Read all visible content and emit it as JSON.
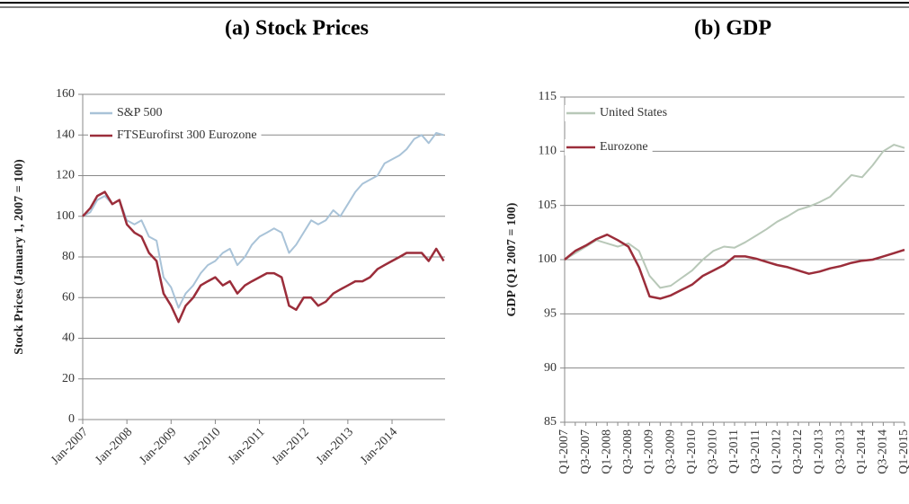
{
  "chart_data": [
    {
      "type": "line",
      "title": "(a) Stock Prices",
      "ylabel": "Stock Prices (January 1, 2007 = 100)",
      "x": [
        2007,
        2007.17,
        2007.33,
        2007.5,
        2007.67,
        2007.83,
        2008,
        2008.17,
        2008.33,
        2008.5,
        2008.67,
        2008.83,
        2009,
        2009.17,
        2009.33,
        2009.5,
        2009.67,
        2009.83,
        2010,
        2010.17,
        2010.33,
        2010.5,
        2010.67,
        2010.83,
        2011,
        2011.17,
        2011.33,
        2011.5,
        2011.67,
        2011.83,
        2012,
        2012.17,
        2012.33,
        2012.5,
        2012.67,
        2012.83,
        2013,
        2013.17,
        2013.33,
        2013.5,
        2013.67,
        2013.83,
        2014,
        2014.17,
        2014.33,
        2014.5,
        2014.67,
        2014.83,
        2015,
        2015.17
      ],
      "series": [
        {
          "name": "S&P 500",
          "color": "#a9c3d8",
          "values": [
            100,
            102,
            108,
            110,
            106,
            108,
            98,
            96,
            98,
            90,
            88,
            70,
            65,
            55,
            62,
            66,
            72,
            76,
            78,
            82,
            84,
            76,
            80,
            86,
            90,
            92,
            94,
            92,
            82,
            86,
            92,
            98,
            96,
            98,
            103,
            100,
            106,
            112,
            116,
            118,
            120,
            126,
            128,
            130,
            133,
            138,
            140,
            136,
            141,
            140
          ]
        },
        {
          "name": "FTSEurofirst 300 Eurozone",
          "color": "#9b2d3a",
          "values": [
            100,
            104,
            110,
            112,
            106,
            108,
            96,
            92,
            90,
            82,
            78,
            62,
            56,
            48,
            56,
            60,
            66,
            68,
            70,
            66,
            68,
            62,
            66,
            68,
            70,
            72,
            72,
            70,
            56,
            54,
            60,
            60,
            56,
            58,
            62,
            64,
            66,
            68,
            68,
            70,
            74,
            76,
            78,
            80,
            82,
            82,
            82,
            78,
            84,
            78
          ]
        }
      ],
      "xlim": [
        2007,
        2015.2
      ],
      "xticks": [
        {
          "value": 2007,
          "label": "Jan-2007"
        },
        {
          "value": 2008,
          "label": "Jan-2008"
        },
        {
          "value": 2009,
          "label": "Jan-2009"
        },
        {
          "value": 2010,
          "label": "Jan-2010"
        },
        {
          "value": 2011,
          "label": "Jan-2011"
        },
        {
          "value": 2012,
          "label": "Jan-2012"
        },
        {
          "value": 2013,
          "label": "Jan-2013"
        },
        {
          "value": 2014,
          "label": "Jan-2014"
        }
      ],
      "ylim": [
        0,
        160
      ],
      "yticks": [
        0,
        20,
        40,
        60,
        80,
        100,
        120,
        140,
        160
      ],
      "grid": true,
      "legend": "upper left"
    },
    {
      "type": "line",
      "title": "(b) GDP",
      "ylabel": "GDP (Q1 2007 = 100)",
      "categories": [
        "Q1-2007",
        null,
        "Q3-2007",
        null,
        "Q1-2008",
        null,
        "Q3-2008",
        null,
        "Q1-2009",
        null,
        "Q3-2009",
        null,
        "Q1-2010",
        null,
        "Q3-2010",
        null,
        "Q1-2011",
        null,
        "Q3-2011",
        null,
        "Q1-2012",
        null,
        "Q3-2012",
        null,
        "Q1-2013",
        null,
        "Q3-2013",
        null,
        "Q1-2014",
        null,
        "Q3-2014",
        null,
        "Q1-2015"
      ],
      "series": [
        {
          "name": "United States",
          "color": "#b8c8b8",
          "values": [
            100,
            100.6,
            101.2,
            101.8,
            101.5,
            101.2,
            101.5,
            100.8,
            98.5,
            97.4,
            97.6,
            98.3,
            99,
            100,
            100.8,
            101.2,
            101.1,
            101.6,
            102.2,
            102.8,
            103.5,
            104,
            104.6,
            104.9,
            105.3,
            105.8,
            106.8,
            107.8,
            107.6,
            108.7,
            110,
            110.6,
            110.3
          ]
        },
        {
          "name": "Eurozone",
          "color": "#9b2d3a",
          "values": [
            100,
            100.8,
            101.3,
            101.9,
            102.3,
            101.8,
            101.2,
            99.3,
            96.6,
            96.4,
            96.7,
            97.2,
            97.7,
            98.5,
            99,
            99.5,
            100.3,
            100.3,
            100.1,
            99.8,
            99.5,
            99.3,
            99,
            98.7,
            98.9,
            99.2,
            99.4,
            99.7,
            99.9,
            100,
            100.3,
            100.6,
            100.9
          ]
        }
      ],
      "ylim": [
        85,
        115
      ],
      "yticks": [
        85,
        90,
        95,
        100,
        105,
        110,
        115
      ],
      "grid": true,
      "legend": "upper left"
    }
  ]
}
